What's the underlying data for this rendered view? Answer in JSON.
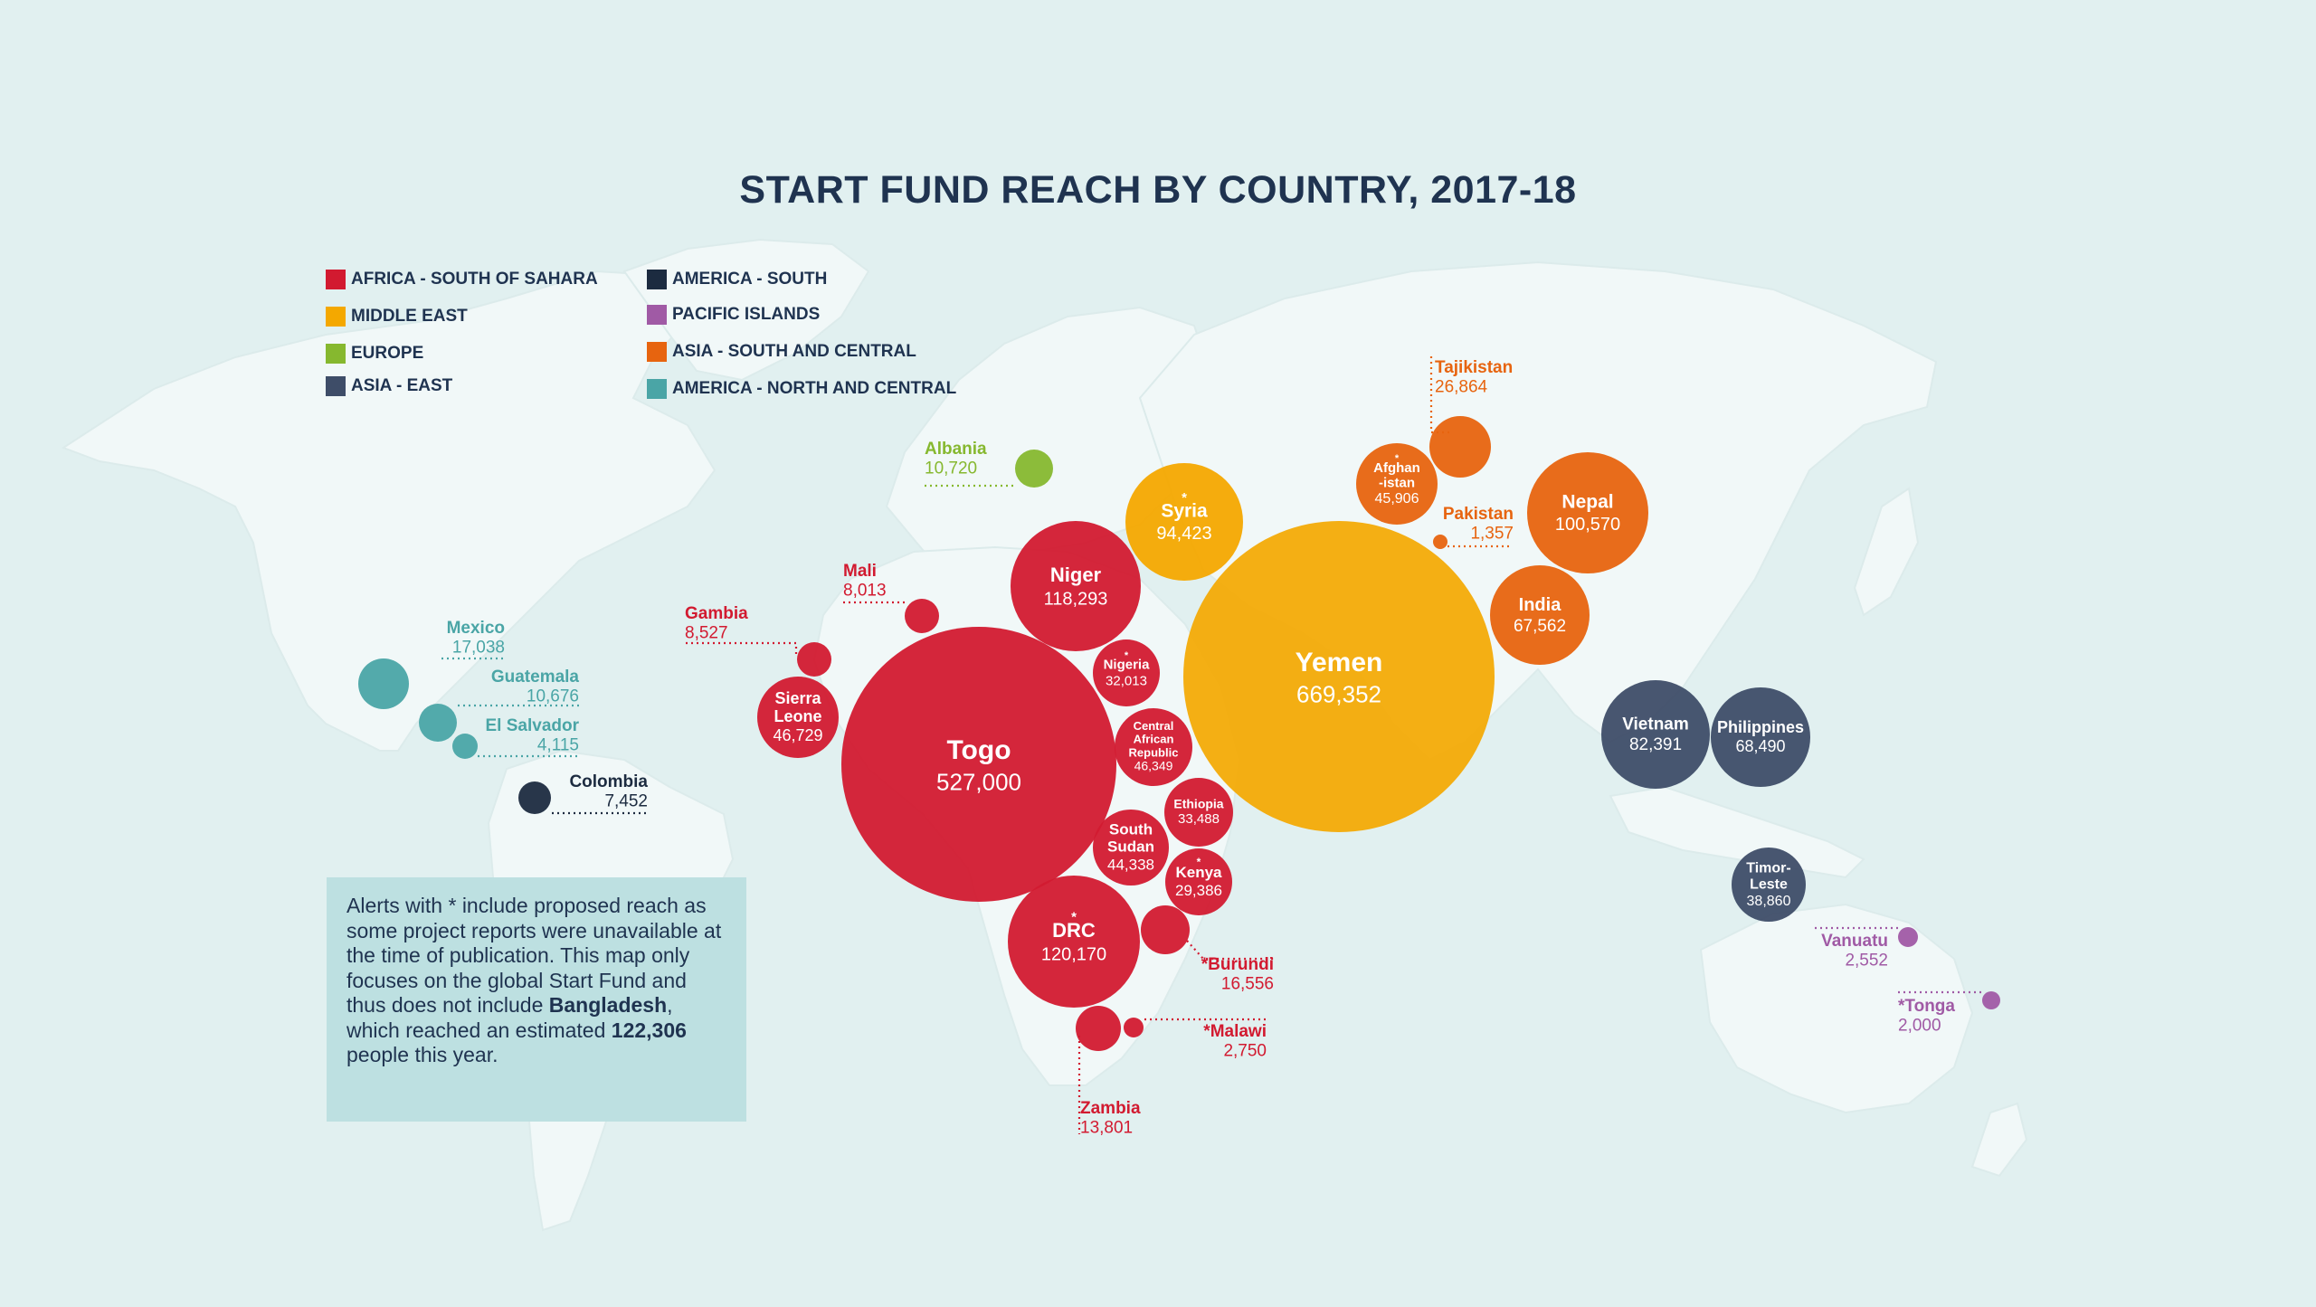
{
  "title": "START FUND REACH BY COUNTRY, 2017-18",
  "colors": {
    "background": "#e1f0f0",
    "land": "#f1f8f8",
    "africa_south_of_sahara": "#d21a30",
    "middle_east": "#f4a800",
    "europe": "#86b82f",
    "asia_east": "#3e4d68",
    "america_south": "#1c2b40",
    "pacific_islands": "#a05aa5",
    "asia_south_central": "#e7640f",
    "america_north_central": "#4aa5a6",
    "title_text": "#1f3350"
  },
  "legend": [
    {
      "key": "africa_south_of_sahara",
      "label": "AFRICA - SOUTH OF SAHARA"
    },
    {
      "key": "middle_east",
      "label": "MIDDLE EAST"
    },
    {
      "key": "europe",
      "label": "EUROPE"
    },
    {
      "key": "asia_east",
      "label": "ASIA - EAST"
    },
    {
      "key": "america_south",
      "label": "AMERICA - SOUTH"
    },
    {
      "key": "pacific_islands",
      "label": "PACIFIC ISLANDS"
    },
    {
      "key": "asia_south_central",
      "label": "ASIA - SOUTH AND CENTRAL"
    },
    {
      "key": "america_north_central",
      "label": "AMERICA - NORTH AND CENTRAL"
    }
  ],
  "note": {
    "part1": "Alerts with * include proposed reach as some project reports were unavailable at the time of publication. This map only focuses on the global Start Fund and thus does not include ",
    "highlight_country": "Bangladesh",
    "part2": ", which reached an estimated ",
    "highlight_value": "122,306",
    "part3": " people this year."
  },
  "countries": [
    {
      "name": "Togo",
      "value": "527,000",
      "region": "africa_south_of_sahara"
    },
    {
      "name": "Yemen",
      "value": "669,352",
      "region": "middle_east"
    },
    {
      "name": "Niger",
      "value": "118,293",
      "region": "africa_south_of_sahara"
    },
    {
      "name": "DRC",
      "value": "120,170",
      "region": "africa_south_of_sahara",
      "asterisk": true
    },
    {
      "name": "Syria",
      "value": "94,423",
      "region": "middle_east",
      "asterisk": true
    },
    {
      "name": "Nepal",
      "value": "100,570",
      "region": "asia_south_central"
    },
    {
      "name": "India",
      "value": "67,562",
      "region": "asia_south_central"
    },
    {
      "name": "Vietnam",
      "value": "82,391",
      "region": "asia_east"
    },
    {
      "name": "Philippines",
      "value": "68,490",
      "region": "asia_east"
    },
    {
      "name": "Timor-Leste",
      "value": "38,860",
      "region": "asia_east"
    },
    {
      "name": "Afghanistan",
      "value": "45,906",
      "region": "asia_south_central",
      "asterisk": true
    },
    {
      "name": "Tajikistan",
      "value": "26,864",
      "region": "asia_south_central"
    },
    {
      "name": "Pakistan",
      "value": "1,357",
      "region": "asia_south_central"
    },
    {
      "name": "Sierra Leone",
      "value": "46,729",
      "region": "africa_south_of_sahara"
    },
    {
      "name": "Nigeria",
      "value": "32,013",
      "region": "africa_south_of_sahara",
      "asterisk": true
    },
    {
      "name": "Central African Republic",
      "value": "46,349",
      "region": "africa_south_of_sahara"
    },
    {
      "name": "Ethiopia",
      "value": "33,488",
      "region": "africa_south_of_sahara"
    },
    {
      "name": "South Sudan",
      "value": "44,338",
      "region": "africa_south_of_sahara"
    },
    {
      "name": "Kenya",
      "value": "29,386",
      "region": "africa_south_of_sahara",
      "asterisk": true
    },
    {
      "name": "Burundi",
      "value": "16,556",
      "region": "africa_south_of_sahara",
      "asterisk": true
    },
    {
      "name": "Malawi",
      "value": "2,750",
      "region": "africa_south_of_sahara",
      "asterisk": true
    },
    {
      "name": "Zambia",
      "value": "13,801",
      "region": "africa_south_of_sahara"
    },
    {
      "name": "Mali",
      "value": "8,013",
      "region": "africa_south_of_sahara"
    },
    {
      "name": "Gambia",
      "value": "8,527",
      "region": "africa_south_of_sahara"
    },
    {
      "name": "Albania",
      "value": "10,720",
      "region": "europe"
    },
    {
      "name": "Mexico",
      "value": "17,038",
      "region": "america_north_central"
    },
    {
      "name": "Guatemala",
      "value": "10,676",
      "region": "america_north_central"
    },
    {
      "name": "El Salvador",
      "value": "4,115",
      "region": "america_north_central"
    },
    {
      "name": "Colombia",
      "value": "7,452",
      "region": "america_south"
    },
    {
      "name": "Vanuatu",
      "value": "2,552",
      "region": "pacific_islands"
    },
    {
      "name": "Tonga",
      "value": "2,000",
      "region": "pacific_islands",
      "asterisk": true
    }
  ],
  "label_text": {
    "Togo": [
      "Togo"
    ],
    "Yemen": [
      "Yemen"
    ],
    "Niger": [
      "Niger"
    ],
    "DRC": [
      "DRC"
    ],
    "Syria": [
      "Syria"
    ],
    "Nepal": [
      "Nepal"
    ],
    "India": [
      "India"
    ],
    "Vietnam": [
      "Vietnam"
    ],
    "Philippines": [
      "Philippines"
    ],
    "Timor-Leste": [
      "Timor-",
      "Leste"
    ],
    "Afghanistan": [
      "Afghan",
      "-istan"
    ],
    "Sierra Leone": [
      "Sierra",
      "Leone"
    ],
    "Nigeria": [
      "Nigeria"
    ],
    "Central African Republic": [
      "Central",
      "African",
      "Republic"
    ],
    "Ethiopia": [
      "Ethiopia"
    ],
    "South Sudan": [
      "South",
      "Sudan"
    ],
    "Kenya": [
      "Kenya"
    ],
    "Tajikistan": [
      "Tajikistan"
    ],
    "Pakistan": [
      "Pakistan"
    ],
    "Burundi": [
      "*Burundi"
    ],
    "Malawi": [
      "*Malawi"
    ],
    "Zambia": [
      "Zambia"
    ],
    "Mali": [
      "Mali"
    ],
    "Gambia": [
      "Gambia"
    ],
    "Albania": [
      "Albania"
    ],
    "Mexico": [
      "Mexico"
    ],
    "Guatemala": [
      "Guatemala"
    ],
    "El Salvador": [
      "El Salvador"
    ],
    "Colombia": [
      "Colombia"
    ],
    "Vanuatu": [
      "Vanuatu"
    ],
    "Tonga": [
      "*Tonga"
    ]
  }
}
